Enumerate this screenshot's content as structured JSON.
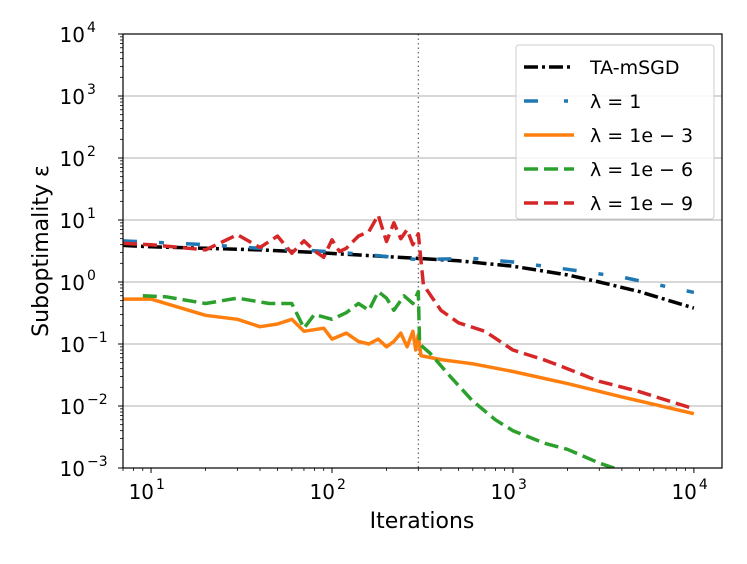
{
  "chart_data": {
    "type": "line",
    "title": "",
    "xlabel": "Iterations",
    "ylabel": "Suboptimality ε",
    "xscale": "log",
    "yscale": "log",
    "xlim": [
      7,
      14300
    ],
    "ylim": [
      0.001,
      10000
    ],
    "grid": "y-major",
    "vline": 300,
    "legend_position": "top-right",
    "x_ticks": [
      {
        "value": 10,
        "base": "10",
        "exp": "1"
      },
      {
        "value": 100,
        "base": "10",
        "exp": "2"
      },
      {
        "value": 1000,
        "base": "10",
        "exp": "3"
      },
      {
        "value": 10000,
        "base": "10",
        "exp": "4"
      }
    ],
    "y_ticks": [
      {
        "value": 0.001,
        "base": "10",
        "exp": "−3"
      },
      {
        "value": 0.01,
        "base": "10",
        "exp": "−2"
      },
      {
        "value": 0.1,
        "base": "10",
        "exp": "−1"
      },
      {
        "value": 1,
        "base": "10",
        "exp": "0"
      },
      {
        "value": 10,
        "base": "10",
        "exp": "1"
      },
      {
        "value": 100,
        "base": "10",
        "exp": "2"
      },
      {
        "value": 1000,
        "base": "10",
        "exp": "3"
      },
      {
        "value": 10000,
        "base": "10",
        "exp": "4"
      }
    ],
    "series": [
      {
        "name": "TA-mSGD",
        "color": "#000000",
        "style": "dashdot",
        "x": [
          7,
          10,
          20,
          40,
          80,
          150,
          300,
          500,
          1000,
          2000,
          3000,
          5000,
          10000
        ],
        "y": [
          3.9,
          3.7,
          3.5,
          3.3,
          3.0,
          2.7,
          2.4,
          2.2,
          1.8,
          1.3,
          1.0,
          0.7,
          0.38
        ]
      },
      {
        "name": "λ = 1",
        "color": "#1f77b4",
        "style": "loosedash",
        "x": [
          7,
          10,
          20,
          40,
          80,
          150,
          300,
          600,
          1000,
          2000,
          4000,
          10000
        ],
        "y": [
          4.6,
          4.4,
          4.0,
          3.5,
          3.2,
          2.8,
          2.3,
          2.4,
          2.1,
          1.6,
          1.2,
          0.68
        ]
      },
      {
        "name": "λ = 1e − 3",
        "color": "#ff7f0e",
        "style": "solid",
        "x": [
          7,
          10,
          20,
          30,
          40,
          50,
          60,
          70,
          90,
          100,
          120,
          140,
          160,
          180,
          200,
          220,
          240,
          260,
          280,
          290,
          300,
          310,
          400,
          600,
          1000,
          2000,
          4000,
          10000
        ],
        "y": [
          0.53,
          0.53,
          0.29,
          0.25,
          0.19,
          0.21,
          0.25,
          0.16,
          0.18,
          0.12,
          0.15,
          0.11,
          0.1,
          0.12,
          0.09,
          0.11,
          0.15,
          0.09,
          0.16,
          0.08,
          0.14,
          0.065,
          0.056,
          0.048,
          0.036,
          0.023,
          0.014,
          0.0075
        ]
      },
      {
        "name": "λ = 1e − 6",
        "color": "#2ca02c",
        "style": "dashed",
        "x": [
          9,
          12,
          20,
          30,
          45,
          60,
          70,
          80,
          100,
          120,
          140,
          160,
          180,
          200,
          220,
          250,
          280,
          300,
          305,
          350,
          450,
          600,
          800,
          1000,
          1500,
          2000,
          3000,
          4000,
          6000
        ],
        "y": [
          0.6,
          0.58,
          0.45,
          0.55,
          0.45,
          0.45,
          0.18,
          0.3,
          0.25,
          0.32,
          0.45,
          0.35,
          0.7,
          0.55,
          0.35,
          0.6,
          0.45,
          0.7,
          0.1,
          0.07,
          0.03,
          0.012,
          0.006,
          0.004,
          0.0025,
          0.002,
          0.0012,
          0.0009,
          0.0006
        ]
      },
      {
        "name": "λ = 1e − 9",
        "color": "#d62728",
        "style": "dashed",
        "x": [
          7,
          10,
          20,
          30,
          40,
          50,
          60,
          70,
          80,
          90,
          100,
          110,
          120,
          140,
          160,
          180,
          200,
          220,
          240,
          260,
          280,
          300,
          320,
          400,
          500,
          700,
          1000,
          1500,
          2000,
          3000,
          5000,
          10000
        ],
        "y": [
          4.2,
          4.0,
          3.3,
          5.8,
          3.6,
          5.5,
          2.9,
          4.6,
          3.2,
          2.5,
          4.8,
          3.1,
          3.5,
          5.5,
          6.5,
          12,
          4.5,
          9,
          5,
          7,
          4,
          6,
          0.9,
          0.35,
          0.22,
          0.16,
          0.08,
          0.055,
          0.04,
          0.025,
          0.017,
          0.009
        ]
      }
    ]
  }
}
